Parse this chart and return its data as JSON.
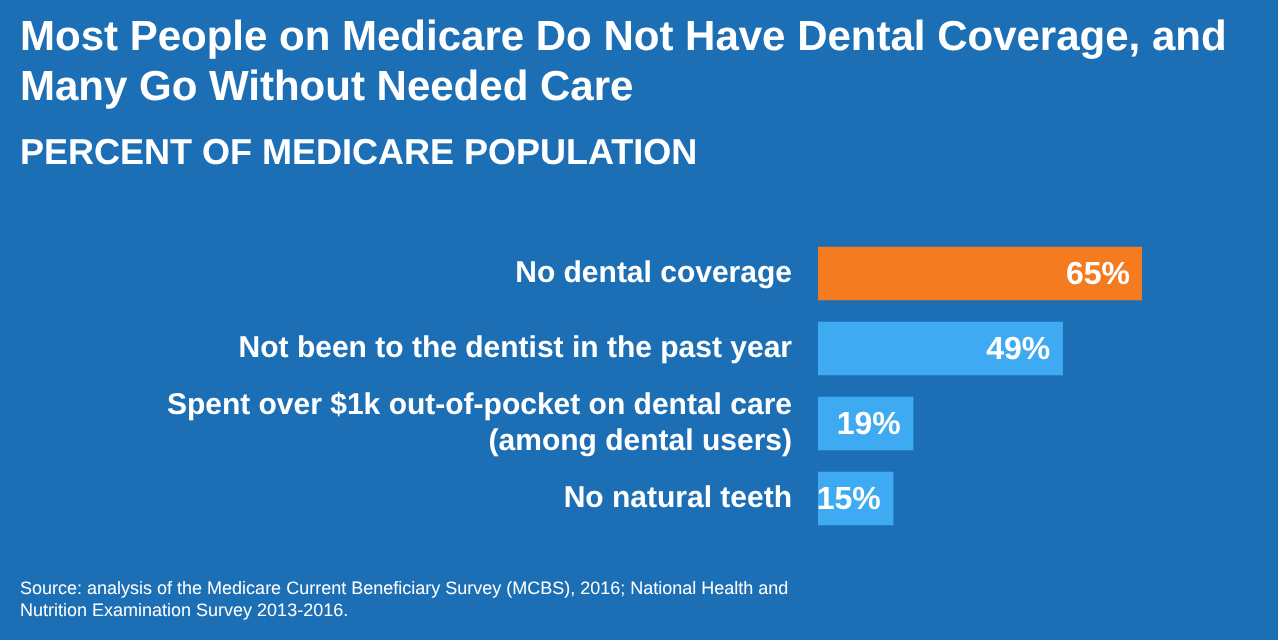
{
  "chart_data": {
    "type": "bar",
    "orientation": "horizontal",
    "title": "Most People on Medicare Do Not Have Dental Coverage, and Many Go Without Needed Care",
    "subtitle": "PERCENT OF MEDICARE POPULATION",
    "categories": [
      "No dental coverage",
      "Not been to the dentist in the past year",
      "Spent over $1k out-of-pocket on dental care (among dental users)",
      "No natural teeth"
    ],
    "values": [
      65,
      49,
      19,
      15
    ],
    "colors": [
      "#f47b20",
      "#3eaaf2",
      "#3eaaf2",
      "#3eaaf2"
    ],
    "value_labels": [
      "65%",
      "49%",
      "19%",
      "15%"
    ],
    "legend": false,
    "annotations": [
      "Source: analysis of the Medicare Current Beneficiary Survey (MCBS), 2016; National Health and Nutrition Examination Survey 2013-2016."
    ]
  }
}
